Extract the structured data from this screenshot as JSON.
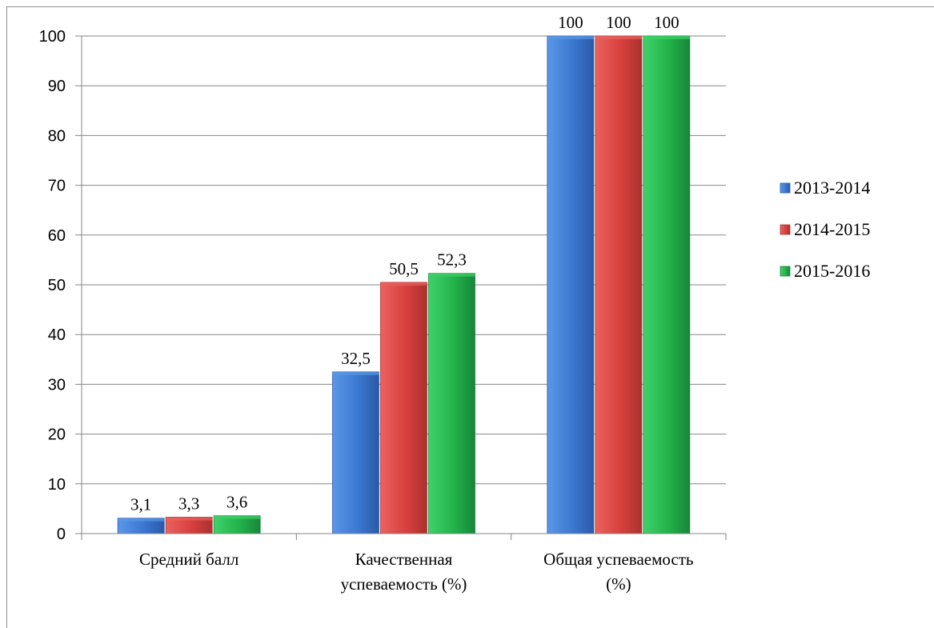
{
  "chart_data": {
    "type": "bar",
    "categories": [
      [
        "Средний балл"
      ],
      [
        "Качественная",
        "успеваемость (%)"
      ],
      [
        "Общая  успеваемость",
        "(%)"
      ]
    ],
    "series": [
      {
        "name": "2013-2014",
        "values": [
          3.1,
          32.5,
          100
        ],
        "labels": [
          "3,1",
          "32,5",
          "100"
        ],
        "color": "#3b78d0",
        "color_light": "#5b97e6",
        "color_dark": "#2a5aa8"
      },
      {
        "name": "2014-2015",
        "values": [
          3.3,
          50.5,
          100
        ],
        "labels": [
          "3,3",
          "50,5",
          "100"
        ],
        "color": "#d8403d",
        "color_light": "#ea625e",
        "color_dark": "#a93230"
      },
      {
        "name": "2015-2016",
        "values": [
          3.6,
          52.3,
          100
        ],
        "labels": [
          "3,6",
          "52,3",
          "100"
        ],
        "color": "#23b24a",
        "color_light": "#3fd16a",
        "color_dark": "#17863a"
      }
    ],
    "y_ticks": [
      "0",
      "10",
      "20",
      "30",
      "40",
      "50",
      "60",
      "70",
      "80",
      "90",
      "100"
    ],
    "ylim": [
      0,
      100
    ],
    "grid": true,
    "legend_position": "right",
    "title": "",
    "xlabel": "",
    "ylabel": ""
  }
}
